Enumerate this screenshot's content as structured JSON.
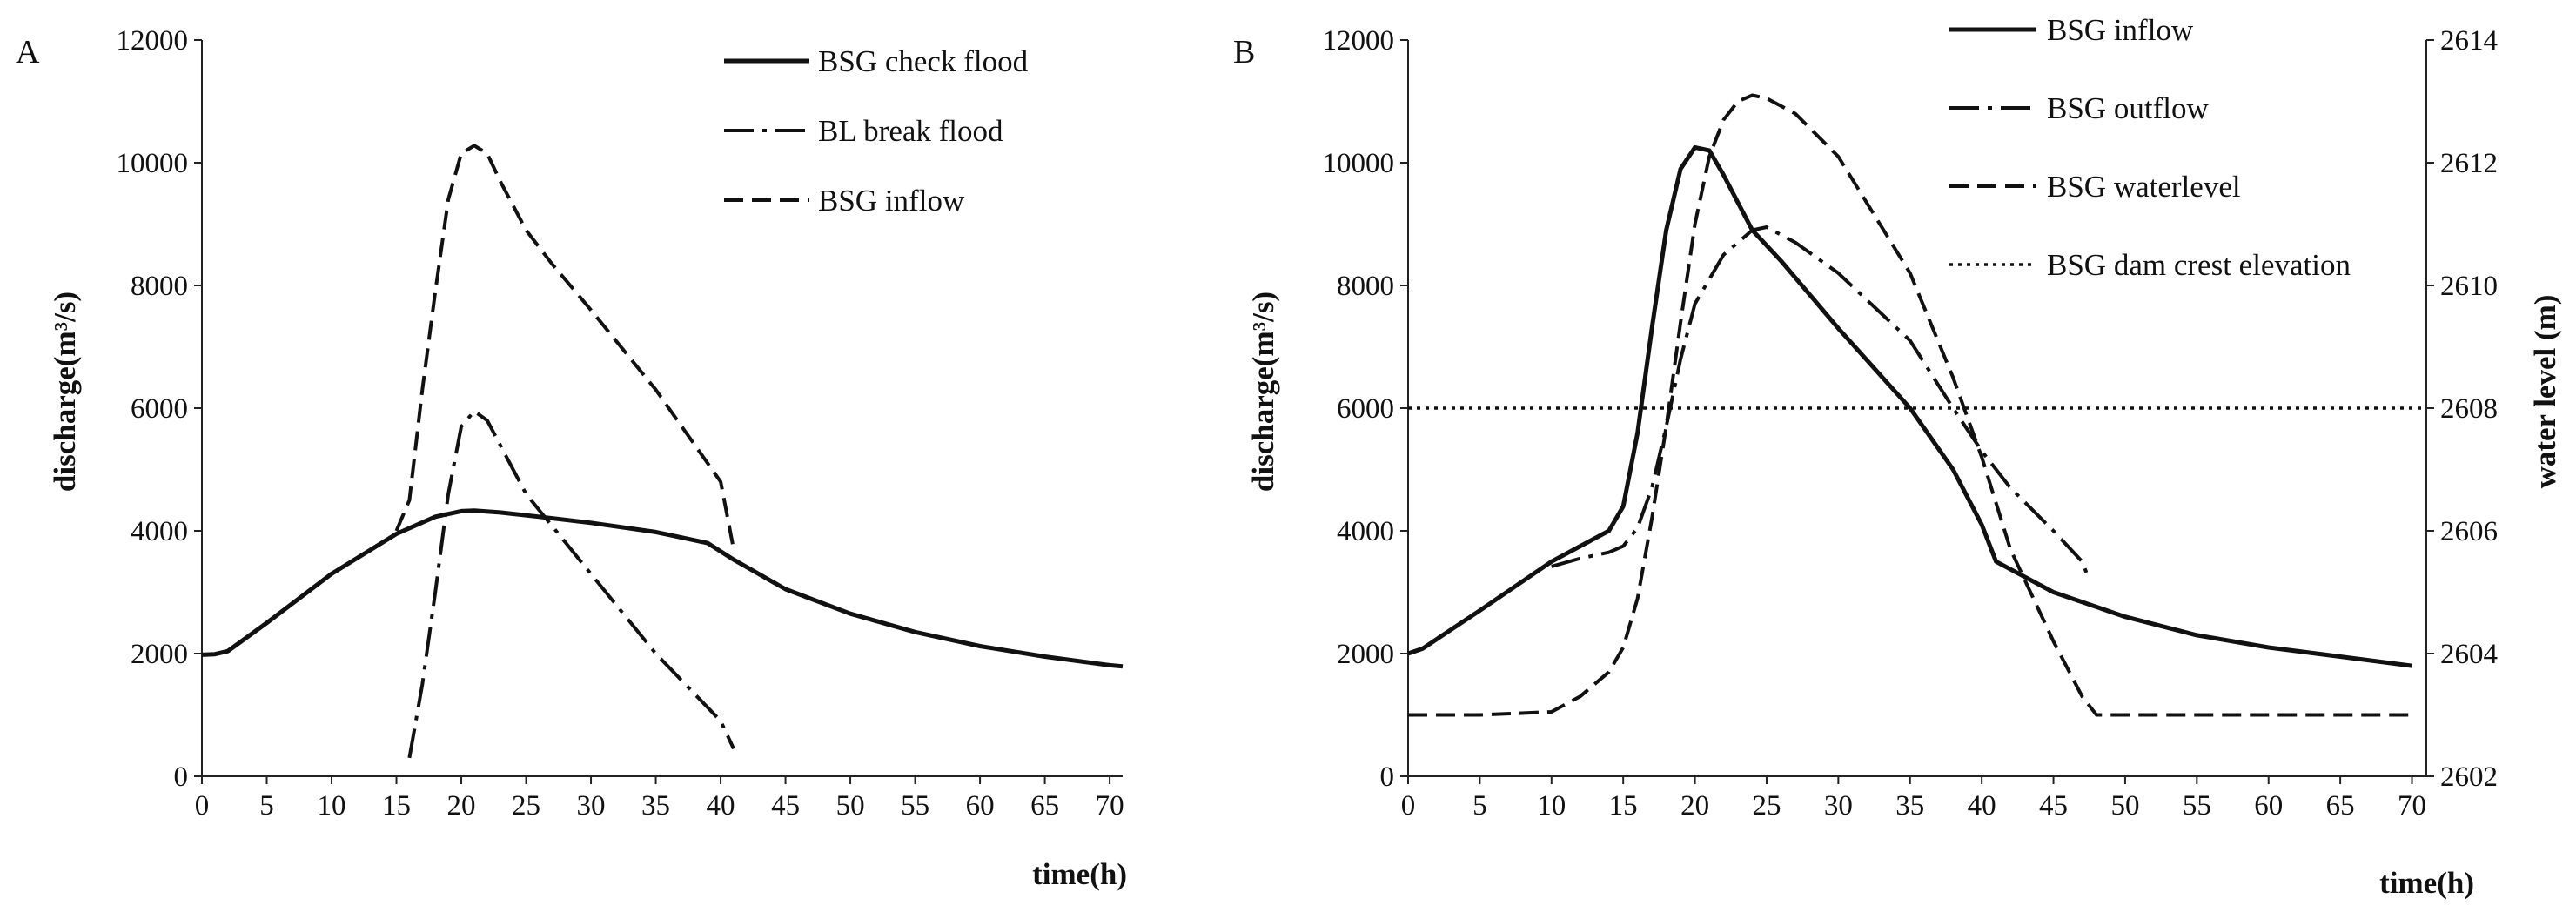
{
  "chart_data": [
    {
      "panel": "A",
      "type": "line",
      "xlabel": "time(h)",
      "ylabel": "discharge(m³/s)",
      "xticks": [
        "0",
        "5",
        "10",
        "15",
        "20",
        "25",
        "30",
        "35",
        "40",
        "45",
        "50",
        "55",
        "60",
        "65",
        "70"
      ],
      "yticks": [
        "0",
        "2000",
        "4000",
        "6000",
        "8000",
        "10000",
        "12000"
      ],
      "xlim": [
        0,
        71
      ],
      "ylim": [
        0,
        12000
      ],
      "series": [
        {
          "name": "BSG check flood",
          "style": "solid",
          "x": [
            0,
            1,
            2,
            5,
            10,
            15,
            18,
            20,
            21,
            23,
            26,
            30,
            35,
            39,
            41,
            45,
            50,
            55,
            60,
            65,
            70,
            71
          ],
          "y": [
            1980,
            1990,
            2040,
            2500,
            3300,
            3950,
            4230,
            4320,
            4330,
            4300,
            4230,
            4130,
            3980,
            3800,
            3530,
            3050,
            2650,
            2350,
            2120,
            1950,
            1810,
            1790
          ]
        },
        {
          "name": "BL break flood",
          "style": "dashdot",
          "x": [
            16,
            17,
            18,
            19,
            20,
            21,
            22,
            25,
            30,
            35,
            40,
            41
          ],
          "y": [
            300,
            1500,
            3000,
            4600,
            5700,
            5950,
            5800,
            4600,
            3300,
            2000,
            900,
            450
          ]
        },
        {
          "name": "BSG inflow",
          "style": "dashed",
          "x": [
            15,
            16,
            17,
            18,
            19,
            20,
            21,
            22,
            23,
            25,
            27,
            30,
            35,
            38,
            40,
            41
          ],
          "y": [
            4000,
            4500,
            6300,
            7900,
            9400,
            10150,
            10280,
            10150,
            9700,
            8900,
            8350,
            7600,
            6300,
            5400,
            4800,
            3700
          ]
        }
      ]
    },
    {
      "panel": "B",
      "type": "line",
      "xlabel": "time(h)",
      "ylabel": "discharge(m³/s)",
      "y2label": "water level (m)",
      "xticks": [
        "0",
        "5",
        "10",
        "15",
        "20",
        "25",
        "30",
        "35",
        "40",
        "45",
        "50",
        "55",
        "60",
        "65",
        "70"
      ],
      "yticks": [
        "0",
        "2000",
        "4000",
        "6000",
        "8000",
        "10000",
        "12000"
      ],
      "y2ticks": [
        "2602",
        "2604",
        "2606",
        "2608",
        "2610",
        "2612",
        "2614"
      ],
      "xlim": [
        0,
        71
      ],
      "ylim": [
        0,
        12000
      ],
      "y2lim": [
        2602,
        2614
      ],
      "series": [
        {
          "name": "BSG inflow",
          "style": "solid",
          "axis": "left",
          "x": [
            0,
            1,
            5,
            10,
            14,
            15,
            16,
            17,
            18,
            19,
            20,
            21,
            22,
            24,
            26,
            30,
            35,
            38,
            40,
            41,
            45,
            50,
            55,
            60,
            65,
            70
          ],
          "y": [
            2000,
            2080,
            2700,
            3500,
            4000,
            4400,
            5600,
            7300,
            8900,
            9900,
            10250,
            10200,
            9800,
            8900,
            8400,
            7300,
            6000,
            5000,
            4100,
            3500,
            3000,
            2600,
            2300,
            2100,
            1950,
            1800
          ]
        },
        {
          "name": "BSG outflow",
          "style": "dashdot",
          "axis": "left",
          "x": [
            10,
            12,
            14,
            15,
            16,
            17,
            18,
            19,
            20,
            22,
            24,
            25,
            27,
            30,
            35,
            38,
            40,
            42,
            45,
            47,
            47.5
          ],
          "y": [
            3420,
            3550,
            3650,
            3750,
            4050,
            4700,
            5700,
            6800,
            7700,
            8500,
            8900,
            8950,
            8700,
            8200,
            7100,
            6000,
            5300,
            4700,
            4000,
            3500,
            3200
          ]
        },
        {
          "name": "BSG waterlevel",
          "style": "dashed",
          "axis": "right",
          "x": [
            0,
            5,
            10,
            12,
            14,
            15,
            16,
            17,
            18,
            19,
            20,
            21,
            22,
            23,
            24,
            25,
            27,
            30,
            35,
            38,
            40,
            42,
            45,
            47,
            48,
            70
          ],
          "y": [
            2603,
            2603,
            2603.05,
            2603.3,
            2603.7,
            2604.1,
            2604.9,
            2606.2,
            2607.7,
            2609.4,
            2611,
            2612.1,
            2612.7,
            2613,
            2613.1,
            2613.05,
            2612.8,
            2612.1,
            2610.2,
            2608.5,
            2607.2,
            2605.7,
            2604.2,
            2603.3,
            2603,
            2603
          ]
        },
        {
          "name": "BSG dam crest elevation",
          "style": "dotted",
          "axis": "right",
          "x": [
            0,
            71
          ],
          "y": [
            2608,
            2608
          ]
        }
      ]
    }
  ]
}
